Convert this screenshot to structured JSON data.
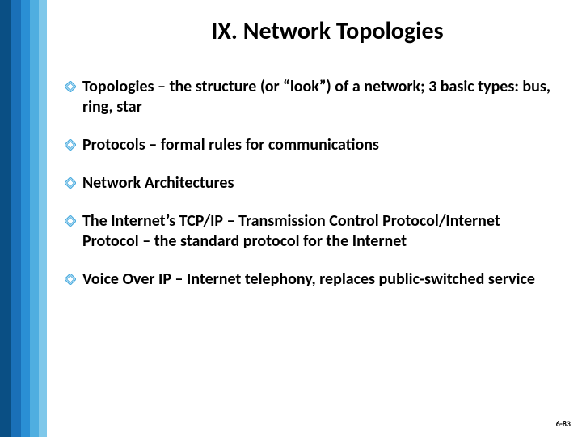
{
  "stripes": {
    "colors": [
      "#0a4f84",
      "#1a70b8",
      "#2a8fd4",
      "#4faee0",
      "#7fc8ea"
    ],
    "widths": [
      14,
      12,
      11,
      11,
      10
    ]
  },
  "title": "IX. Network Topologies",
  "bullet_marker_color": "#4faee0",
  "bullets": [
    {
      "text": "Topologies – the structure (or “look”) of a network; 3 basic types: bus, ring, star"
    },
    {
      "text": "Protocols – formal rules for communications"
    },
    {
      "text": "Network Architectures"
    },
    {
      "text": "The Internet’s TCP/IP – Transmission Control Protocol/Internet Protocol – the standard protocol for the Internet"
    },
    {
      "text": "Voice Over IP – Internet telephony, replaces public-switched service"
    }
  ],
  "footer": "6-83"
}
